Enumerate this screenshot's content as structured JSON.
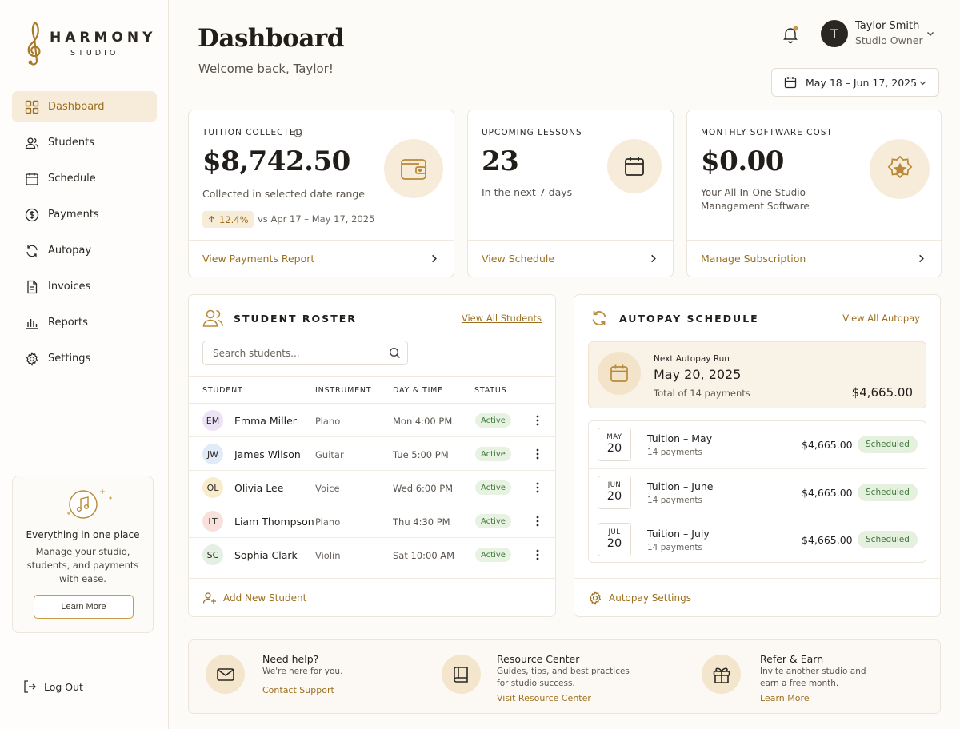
{
  "brand": {
    "name": "HARMONY",
    "sub": "STUDIO"
  },
  "sidebar": {
    "items": [
      {
        "label": "Dashboard",
        "icon": "grid-icon"
      },
      {
        "label": "Students",
        "icon": "users-icon"
      },
      {
        "label": "Schedule",
        "icon": "calendar-icon"
      },
      {
        "label": "Payments",
        "icon": "dollar-circle-icon"
      },
      {
        "label": "Autopay",
        "icon": "refresh-icon"
      },
      {
        "label": "Invoices",
        "icon": "document-icon"
      },
      {
        "label": "Reports",
        "icon": "bar-chart-icon"
      },
      {
        "label": "Settings",
        "icon": "gear-icon"
      }
    ],
    "promo": {
      "title": "Everything in one place",
      "text": "Manage your studio, students, and payments with ease.",
      "button": "Learn More"
    },
    "logout": "Log Out"
  },
  "header": {
    "title": "Dashboard",
    "welcome": "Welcome back, Taylor!",
    "user": {
      "initial": "T",
      "name": "Taylor Smith",
      "role": "Studio Owner"
    },
    "date_range": "May 18 – Jun 17, 2025"
  },
  "stats": {
    "tuition": {
      "label": "TUITION COLLECTED",
      "value": "$8,742.50",
      "sub": "Collected in selected date range",
      "trend": "12.4%",
      "vs": "vs Apr 17 – May 17, 2025",
      "link": "View Payments Report"
    },
    "lessons": {
      "label": "UPCOMING LESSONS",
      "value": "23",
      "sub": "In the next 7 days",
      "link": "View Schedule"
    },
    "software": {
      "label": "MONTHLY SOFTWARE COST",
      "value": "$0.00",
      "sub": "Your All-In-One Studio Management Software",
      "link": "Manage Subscription"
    }
  },
  "roster": {
    "title": "STUDENT ROSTER",
    "view_all": "View All Students",
    "search_placeholder": "Search students...",
    "columns": [
      "STUDENT",
      "INSTRUMENT",
      "DAY & TIME",
      "STATUS"
    ],
    "rows": [
      {
        "initials": "EM",
        "name": "Emma Miller",
        "instrument": "Piano",
        "time": "Mon 4:00 PM",
        "status": "Active",
        "color": "#ece4f6"
      },
      {
        "initials": "JW",
        "name": "James Wilson",
        "instrument": "Guitar",
        "time": "Tue 5:00 PM",
        "status": "Active",
        "color": "#e1ebf7"
      },
      {
        "initials": "OL",
        "name": "Olivia Lee",
        "instrument": "Voice",
        "time": "Wed 6:00 PM",
        "status": "Active",
        "color": "#f8eccd"
      },
      {
        "initials": "LT",
        "name": "Liam Thompson",
        "instrument": "Piano",
        "time": "Thu 4:30 PM",
        "status": "Active",
        "color": "#f8e1dd"
      },
      {
        "initials": "SC",
        "name": "Sophia Clark",
        "instrument": "Violin",
        "time": "Sat 10:00 AM",
        "status": "Active",
        "color": "#e3f0e2"
      }
    ],
    "add": "Add New Student"
  },
  "autopay": {
    "title": "AUTOPAY SCHEDULE",
    "view_all": "View All Autopay",
    "next": {
      "label": "Next Autopay Run",
      "date": "May 20, 2025",
      "total": "Total of 14 payments",
      "amount": "$4,665.00"
    },
    "items": [
      {
        "month": "MAY",
        "day": "20",
        "title": "Tuition – May",
        "sub": "14 payments",
        "amount": "$4,665.00",
        "status": "Scheduled"
      },
      {
        "month": "JUN",
        "day": "20",
        "title": "Tuition – June",
        "sub": "14 payments",
        "amount": "$4,665.00",
        "status": "Scheduled"
      },
      {
        "month": "JUL",
        "day": "20",
        "title": "Tuition – July",
        "sub": "14 payments",
        "amount": "$4,665.00",
        "status": "Scheduled"
      }
    ],
    "settings": "Autopay Settings"
  },
  "help": [
    {
      "title": "Need help?",
      "text": "We're here for you.",
      "link": "Contact Support",
      "icon": "mail-icon"
    },
    {
      "title": "Resource Center",
      "text": "Guides, tips, and best practices\nfor studio success.",
      "link": "Visit Resource Center",
      "icon": "book-icon"
    },
    {
      "title": "Refer & Earn",
      "text": "Invite another studio and\nearn a free month.",
      "link": "Learn More",
      "icon": "gift-icon"
    }
  ],
  "colors": {
    "accent": "#9c6f1e",
    "accent_bg": "#f7ecd9",
    "success": "#3f7a3a"
  }
}
